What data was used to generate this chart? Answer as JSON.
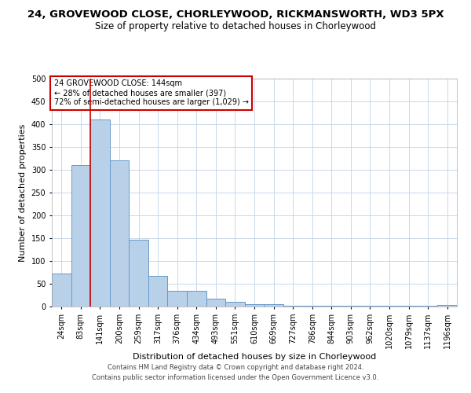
{
  "title1": "24, GROVEWOOD CLOSE, CHORLEYWOOD, RICKMANSWORTH, WD3 5PX",
  "title2": "Size of property relative to detached houses in Chorleywood",
  "xlabel": "Distribution of detached houses by size in Chorleywood",
  "ylabel": "Number of detached properties",
  "categories": [
    "24sqm",
    "83sqm",
    "141sqm",
    "200sqm",
    "259sqm",
    "317sqm",
    "376sqm",
    "434sqm",
    "493sqm",
    "551sqm",
    "610sqm",
    "669sqm",
    "727sqm",
    "786sqm",
    "844sqm",
    "903sqm",
    "962sqm",
    "1020sqm",
    "1079sqm",
    "1137sqm",
    "1196sqm"
  ],
  "values": [
    72,
    310,
    410,
    320,
    147,
    68,
    35,
    35,
    18,
    11,
    6,
    6,
    2,
    2,
    2,
    2,
    1,
    1,
    1,
    1,
    4
  ],
  "bar_color": "#b8d0e8",
  "bar_edge_color": "#6699cc",
  "vline_color": "#cc0000",
  "annotation_text": "24 GROVEWOOD CLOSE: 144sqm\n← 28% of detached houses are smaller (397)\n72% of semi-detached houses are larger (1,029) →",
  "annotation_box_color": "#ffffff",
  "annotation_box_edge": "#cc0000",
  "footer1": "Contains HM Land Registry data © Crown copyright and database right 2024.",
  "footer2": "Contains public sector information licensed under the Open Government Licence v3.0.",
  "bg_color": "#ffffff",
  "grid_color": "#c8d8ea",
  "ylim": [
    0,
    500
  ],
  "yticks": [
    0,
    50,
    100,
    150,
    200,
    250,
    300,
    350,
    400,
    450,
    500
  ],
  "title1_fontsize": 9.5,
  "title2_fontsize": 8.5,
  "xlabel_fontsize": 8,
  "ylabel_fontsize": 8,
  "tick_fontsize": 7,
  "annotation_fontsize": 7,
  "footer_fontsize": 6
}
